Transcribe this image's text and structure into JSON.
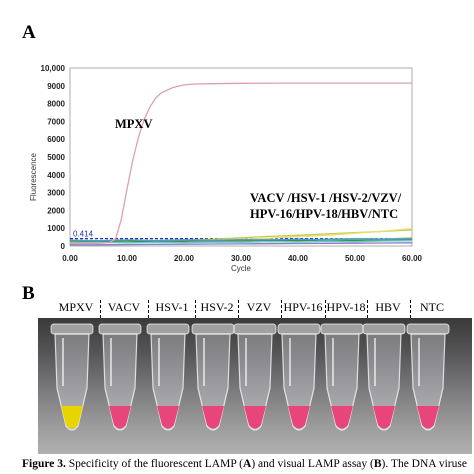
{
  "panel_a_label": "A",
  "panel_b_label": "B",
  "chart_data": {
    "type": "line",
    "xlabel": "Cycle",
    "ylabel": "Fluorescence",
    "xlim": [
      0,
      60
    ],
    "ylim": [
      0,
      10000
    ],
    "x_ticks": [
      "0.00",
      "10.00",
      "20.00",
      "30.00",
      "40.00",
      "50.00",
      "60.00"
    ],
    "y_ticks": [
      "0",
      "1000",
      "2000",
      "3000",
      "4000",
      "5000",
      "6000",
      "7000",
      "8000",
      "9000",
      "10,000"
    ],
    "threshold": {
      "value": 414,
      "label": "0.414",
      "color": "#1f2fb0"
    },
    "grid": true,
    "annotations": {
      "mpxv": "MPXV",
      "others_line1": "VACV /HSV-1 /HSV-2/VZV/",
      "others_line2": "HPV-16/HPV-18/HBV/NTC"
    },
    "series": [
      {
        "color": "#d9a0b4",
        "x": [
          0,
          2,
          4,
          6,
          7,
          8,
          9,
          10,
          11,
          12,
          13,
          14,
          15,
          16,
          18,
          20,
          22,
          25,
          30,
          40,
          50,
          60
        ],
        "y": [
          150,
          150,
          160,
          170,
          200,
          400,
          1500,
          3200,
          4800,
          6100,
          7100,
          7800,
          8300,
          8600,
          8900,
          9050,
          9100,
          9120,
          9140,
          9150,
          9150,
          9150
        ]
      },
      {
        "color": "#c8c84a",
        "x": [
          0,
          5,
          10,
          15,
          20,
          25,
          30,
          35,
          40,
          45,
          50,
          55,
          60
        ],
        "y": [
          120,
          160,
          240,
          280,
          330,
          380,
          460,
          540,
          600,
          680,
          750,
          820,
          900
        ]
      },
      {
        "color": "#e6e070",
        "x": [
          0,
          5,
          10,
          15,
          20,
          25,
          30,
          35,
          40,
          45,
          50,
          55,
          60
        ],
        "y": [
          200,
          180,
          230,
          260,
          300,
          330,
          380,
          440,
          520,
          600,
          720,
          830,
          980
        ]
      },
      {
        "color": "#7fbf5a",
        "x": [
          0,
          5,
          10,
          15,
          20,
          25,
          30,
          35,
          40,
          45,
          50,
          55,
          60
        ],
        "y": [
          250,
          220,
          200,
          270,
          300,
          260,
          320,
          360,
          330,
          380,
          420,
          400,
          450
        ]
      },
      {
        "color": "#3f8f3f",
        "x": [
          0,
          5,
          10,
          15,
          20,
          25,
          30,
          35,
          40,
          45,
          50,
          55,
          60
        ],
        "y": [
          300,
          260,
          280,
          240,
          260,
          300,
          280,
          320,
          300,
          330,
          310,
          350,
          340
        ]
      },
      {
        "color": "#8a7ad0",
        "x": [
          0,
          5,
          10,
          15,
          20,
          25,
          30,
          35,
          40,
          45,
          50,
          55,
          60
        ],
        "y": [
          60,
          70,
          80,
          90,
          100,
          110,
          120,
          130,
          140,
          150,
          160,
          170,
          180
        ]
      },
      {
        "color": "#4a9adf",
        "x": [
          0,
          5,
          10,
          15,
          20,
          25,
          30,
          35,
          40,
          45,
          50,
          55,
          60
        ],
        "y": [
          330,
          300,
          340,
          310,
          350,
          320,
          360,
          340,
          380,
          350,
          390,
          370,
          400
        ]
      },
      {
        "color": "#6dc8c8",
        "x": [
          0,
          5,
          10,
          15,
          20,
          25,
          30,
          35,
          40,
          45,
          50,
          55,
          60
        ],
        "y": [
          180,
          200,
          170,
          210,
          190,
          220,
          200,
          240,
          220,
          260,
          240,
          280,
          300
        ]
      }
    ]
  },
  "tubes": [
    {
      "label": "MPXV",
      "color": "yellow"
    },
    {
      "label": "VACV",
      "color": "pink"
    },
    {
      "label": "HSV-1",
      "color": "pink"
    },
    {
      "label": "HSV-2",
      "color": "pink"
    },
    {
      "label": "VZV",
      "color": "pink"
    },
    {
      "label": "HPV-16",
      "color": "pink"
    },
    {
      "label": "HPV-18",
      "color": "pink"
    },
    {
      "label": "HBV",
      "color": "pink"
    },
    {
      "label": "NTC",
      "color": "pink"
    }
  ],
  "tube_colors": {
    "yellow": "#e8d400",
    "pink": "#e8457a"
  },
  "caption": {
    "bold": "Figure 3.",
    "text": " Specificity of the fluorescent LAMP (",
    "a": "A",
    "mid": ") and visual LAMP assay (",
    "b": "B",
    "end": "). The DNA viruse"
  }
}
